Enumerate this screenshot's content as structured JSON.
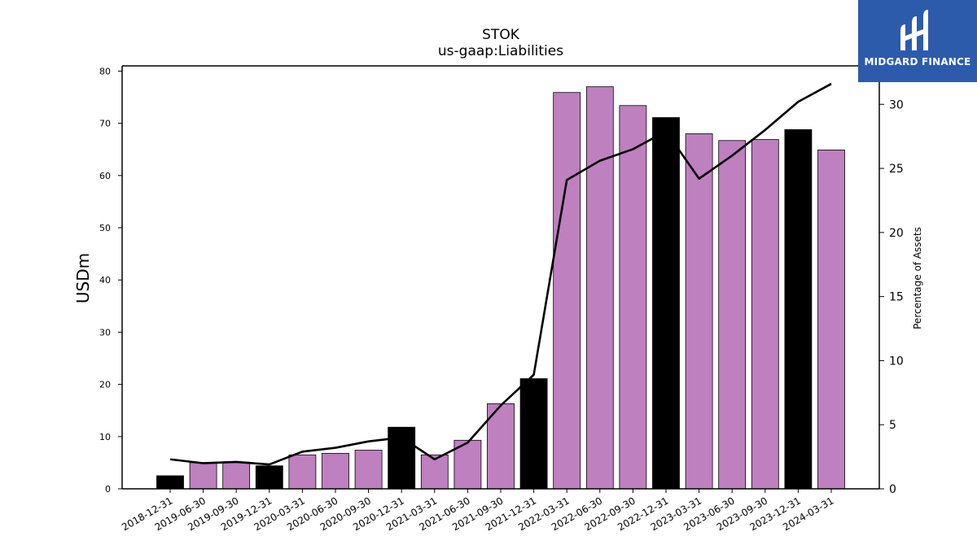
{
  "brand": {
    "name": "MIDGARD FINANCE",
    "background": "#2d5bab"
  },
  "chart_data": {
    "type": "bar",
    "title": "STOK",
    "subtitle": "us-gaap:Liabilities",
    "ylabel": "USDm",
    "y2label": "Percentage of Assets",
    "ylim": [
      0,
      81
    ],
    "y2lim": [
      0,
      33
    ],
    "yticks": [
      0,
      10,
      20,
      30,
      40,
      50,
      60,
      70,
      80
    ],
    "y2ticks": [
      0,
      5,
      10,
      15,
      20,
      25,
      30
    ],
    "categories": [
      "2018-12-31",
      "2019-06-30",
      "2019-09-30",
      "2019-12-31",
      "2020-03-31",
      "2020-06-30",
      "2020-09-30",
      "2020-12-31",
      "2021-03-31",
      "2021-06-30",
      "2021-09-30",
      "2021-12-31",
      "2022-03-31",
      "2022-06-30",
      "2022-09-30",
      "2022-12-31",
      "2023-03-31",
      "2023-06-30",
      "2023-09-30",
      "2023-12-31",
      "2024-03-31"
    ],
    "values": [
      2.5,
      5.0,
      5.1,
      4.4,
      6.5,
      6.8,
      7.4,
      11.8,
      6.5,
      9.3,
      16.3,
      21.1,
      75.9,
      77.0,
      73.4,
      71.1,
      68.0,
      66.7,
      66.9,
      68.8,
      64.9
    ],
    "annual": [
      true,
      false,
      false,
      true,
      false,
      false,
      false,
      true,
      false,
      false,
      false,
      true,
      false,
      false,
      false,
      true,
      false,
      false,
      false,
      true,
      false
    ],
    "line_series": {
      "values": [
        2.3,
        2.0,
        2.1,
        1.9,
        2.9,
        3.2,
        3.7,
        4.0,
        2.3,
        3.6,
        6.5,
        8.9,
        24.1,
        25.6,
        26.5,
        27.9,
        24.2,
        26.0,
        28.0,
        30.2,
        31.6
      ]
    },
    "colors": {
      "quarterly_bar": "#bf80bf",
      "annual_bar": "#000000",
      "line": "#000000"
    }
  }
}
